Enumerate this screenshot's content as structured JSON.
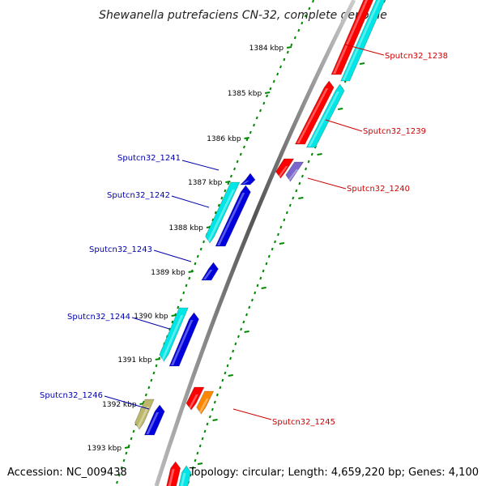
{
  "title": "Shewanella putrefaciens CN-32, complete genome",
  "footer": {
    "accession": "Accession: NC_009438",
    "topology": "Topology: circular; Length: 4,659,220 bp; Genes: 4,100"
  },
  "colors": {
    "forward_cds": "#ff0000",
    "forward_label": "#cc0000",
    "reverse_cds": "#0000dd",
    "reverse_label": "#0000aa",
    "rna_gene": "#00e5e5",
    "other_feature": "#7a66cc",
    "orange_feature": "#ff8800",
    "pseudo_feature": "#bdb76b",
    "tick": "#008800",
    "backbone": "#888888"
  },
  "tick_labels": [
    {
      "kbp": 1384,
      "label": "1384 kbp"
    },
    {
      "kbp": 1385,
      "label": "1385 kbp"
    },
    {
      "kbp": 1386,
      "label": "1386 kbp"
    },
    {
      "kbp": 1387,
      "label": "1387 kbp"
    },
    {
      "kbp": 1388,
      "label": "1388 kbp"
    },
    {
      "kbp": 1389,
      "label": "1389 kbp"
    },
    {
      "kbp": 1390,
      "label": "1390 kbp"
    },
    {
      "kbp": 1391,
      "label": "1391 kbp"
    },
    {
      "kbp": 1392,
      "label": "1392 kbp"
    },
    {
      "kbp": 1393,
      "label": "1393 kbp"
    }
  ],
  "forward_genes": [
    {
      "id": "Sputcn32_1238"
    },
    {
      "id": "Sputcn32_1239"
    },
    {
      "id": "Sputcn32_1240"
    },
    {
      "id": "Sputcn32_1245"
    }
  ],
  "reverse_genes": [
    {
      "id": "Sputcn32_1241"
    },
    {
      "id": "Sputcn32_1242"
    },
    {
      "id": "Sputcn32_1243"
    },
    {
      "id": "Sputcn32_1244"
    },
    {
      "id": "Sputcn32_1246"
    }
  ]
}
